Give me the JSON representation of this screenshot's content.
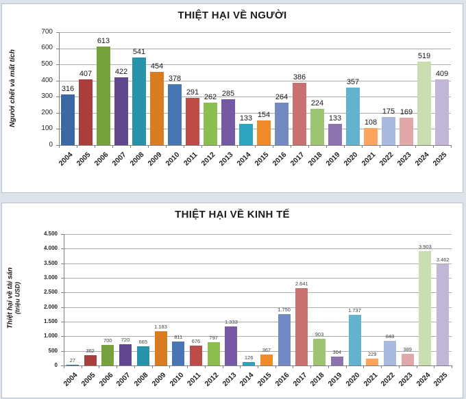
{
  "page": {
    "background": "#dce3eb",
    "panel_background": "#ffffff",
    "panel_border": "#b7c1cc",
    "grid_color": "#aaaaaa",
    "axis_color": "#7f7f7f",
    "title_color": "#1c1c1c",
    "value_label_color_top": "#171717",
    "value_label_color_bottom": "#3f3f3f"
  },
  "bar_colors": [
    "#3c68a4",
    "#a93e3b",
    "#76a13c",
    "#61478d",
    "#2793ab",
    "#d97c21",
    "#4876b4",
    "#bd4b47",
    "#8cbe4f",
    "#7659a5",
    "#2ea3bf",
    "#f18b29",
    "#7289c4",
    "#c97171",
    "#9dc46f",
    "#8c73b0",
    "#63b2ce",
    "#fba55f",
    "#aab9e0",
    "#e0a8a8",
    "#c9deae",
    "#c2b6d7"
  ],
  "chart_data": [
    {
      "type": "bar",
      "title": "THIỆT HẠI VỀ NGƯỜI",
      "ylabel": "Người chết và mất tích",
      "ylabel2": "",
      "xlabel": "",
      "categories": [
        "2004",
        "2005",
        "2006",
        "2007",
        "2008",
        "2009",
        "2010",
        "2011",
        "2012",
        "2013",
        "2014",
        "2015",
        "2016",
        "2017",
        "2018",
        "2019",
        "2020",
        "2021",
        "2022",
        "2023",
        "2024",
        "2025"
      ],
      "values": [
        316,
        407,
        613,
        422,
        541,
        454,
        378,
        291,
        262,
        285,
        133,
        154,
        264,
        386,
        224,
        133,
        357,
        108,
        175,
        169,
        519,
        409
      ],
      "labels": [
        "316",
        "407",
        "613",
        "422",
        "541",
        "454",
        "378",
        "291",
        "262",
        "285",
        "133",
        "154",
        "264",
        "386",
        "224",
        "133",
        "357",
        "108",
        "175",
        "169",
        "519",
        "409"
      ],
      "ylim": [
        0,
        700
      ],
      "ytick_step": 100,
      "yticks": [
        "0",
        "100",
        "200",
        "300",
        "400",
        "500",
        "600",
        "700"
      ],
      "grid": true,
      "legend": "none"
    },
    {
      "type": "bar",
      "title": "THIỆT HẠI VỀ KINH TẾ",
      "ylabel": "Thiệt hại về tài sản",
      "ylabel2": "(triệu USD)",
      "xlabel": "",
      "categories": [
        "2004",
        "2005",
        "2006",
        "2007",
        "2008",
        "2009",
        "2010",
        "2011",
        "2012",
        "2013",
        "2014",
        "2015",
        "2016",
        "2017",
        "2018",
        "2019",
        "2020",
        "2021",
        "2022",
        "2023",
        "2024",
        "2025"
      ],
      "values": [
        27,
        362,
        700,
        720,
        665,
        1183,
        811,
        676,
        797,
        1333,
        126,
        367,
        1750,
        2641,
        903,
        304,
        1737,
        229,
        848,
        389,
        3903,
        3462
      ],
      "labels": [
        "27",
        "362",
        "700",
        "720",
        "665",
        "1.183",
        "811",
        "676",
        "797",
        "1.333",
        "126",
        "367",
        "1.750",
        "2.641",
        "903",
        "304",
        "1.737",
        "229",
        "848",
        "389",
        "3.903",
        "3.462"
      ],
      "ylim": [
        0,
        4500
      ],
      "ytick_step": 500,
      "yticks": [
        "0",
        "500",
        "1.000",
        "1.500",
        "2.000",
        "2.500",
        "3.000",
        "3.500",
        "4.000",
        "4.500"
      ],
      "grid": true,
      "legend": "none"
    }
  ]
}
